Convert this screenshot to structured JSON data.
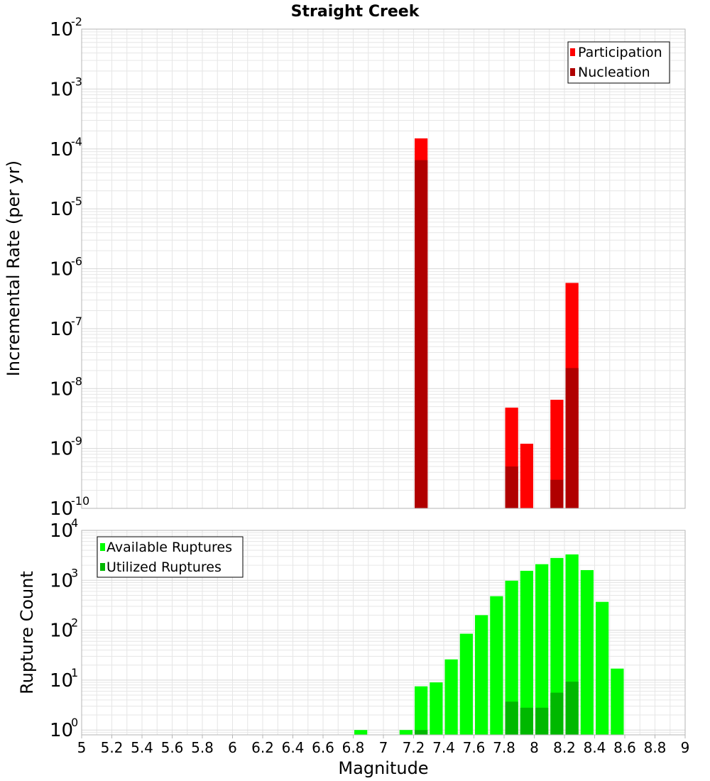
{
  "title": "Straight Creek",
  "colors": {
    "participation": "#ff0000",
    "nucleation": "#b00000",
    "available": "#00ff00",
    "utilized": "#00b800",
    "grid": "#e6e6e6",
    "frame": "#b4b4b4"
  },
  "chart_data": [
    {
      "type": "bar",
      "title": "Straight Creek",
      "xlabel": "",
      "ylabel": "Incremental Rate (per yr)",
      "y_scale": "log",
      "ylim": [
        1e-10,
        0.01
      ],
      "xlim": [
        5,
        9
      ],
      "grid": true,
      "legend_position": "top-right",
      "yticks": [
        {
          "base": "10",
          "exp": "-10"
        },
        {
          "base": "10",
          "exp": "-9"
        },
        {
          "base": "10",
          "exp": "-8"
        },
        {
          "base": "10",
          "exp": "-7"
        },
        {
          "base": "10",
          "exp": "-6"
        },
        {
          "base": "10",
          "exp": "-5"
        },
        {
          "base": "10",
          "exp": "-4"
        },
        {
          "base": "10",
          "exp": "-3"
        },
        {
          "base": "10",
          "exp": "-2"
        }
      ],
      "series": [
        {
          "name": "Participation",
          "color_key": "participation",
          "x": [
            7.25,
            7.85,
            7.95,
            8.15,
            8.25
          ],
          "values": [
            0.00015,
            4.8e-09,
            1.2e-09,
            6.5e-09,
            5.8e-07
          ]
        },
        {
          "name": "Nucleation",
          "color_key": "nucleation",
          "x": [
            7.25,
            7.85,
            8.15,
            8.25
          ],
          "values": [
            6.5e-05,
            5e-10,
            3e-10,
            2.2e-08
          ]
        }
      ]
    },
    {
      "type": "bar",
      "title": "",
      "xlabel": "Magnitude",
      "ylabel": "Rupture Count",
      "y_scale": "log",
      "ylim": [
        0.8,
        10000
      ],
      "xlim": [
        5,
        9
      ],
      "grid": true,
      "legend_position": "top-left",
      "xticks": [
        "5",
        "5.2",
        "5.4",
        "5.6",
        "5.8",
        "6",
        "6.2",
        "6.4",
        "6.6",
        "6.8",
        "7",
        "7.2",
        "7.4",
        "7.6",
        "7.8",
        "8",
        "8.2",
        "8.4",
        "8.6",
        "8.8",
        "9"
      ],
      "yticks": [
        {
          "base": "10",
          "exp": "0"
        },
        {
          "base": "10",
          "exp": "1"
        },
        {
          "base": "10",
          "exp": "2"
        },
        {
          "base": "10",
          "exp": "3"
        },
        {
          "base": "10",
          "exp": "4"
        }
      ],
      "series": [
        {
          "name": "Available Ruptures",
          "color_key": "available",
          "x": [
            6.85,
            7.15,
            7.25,
            7.35,
            7.45,
            7.55,
            7.65,
            7.75,
            7.85,
            7.95,
            8.05,
            8.15,
            8.25,
            8.35,
            8.45,
            8.55
          ],
          "values": [
            1,
            1,
            7.5,
            9,
            26,
            85,
            200,
            480,
            980,
            1550,
            2100,
            2800,
            3300,
            1600,
            370,
            17
          ]
        },
        {
          "name": "Utilized Ruptures",
          "color_key": "utilized",
          "x": [
            7.25,
            7.85,
            7.95,
            8.05,
            8.15,
            8.25
          ],
          "values": [
            1,
            3.7,
            2.8,
            2.8,
            5.6,
            9.3
          ]
        }
      ]
    }
  ]
}
